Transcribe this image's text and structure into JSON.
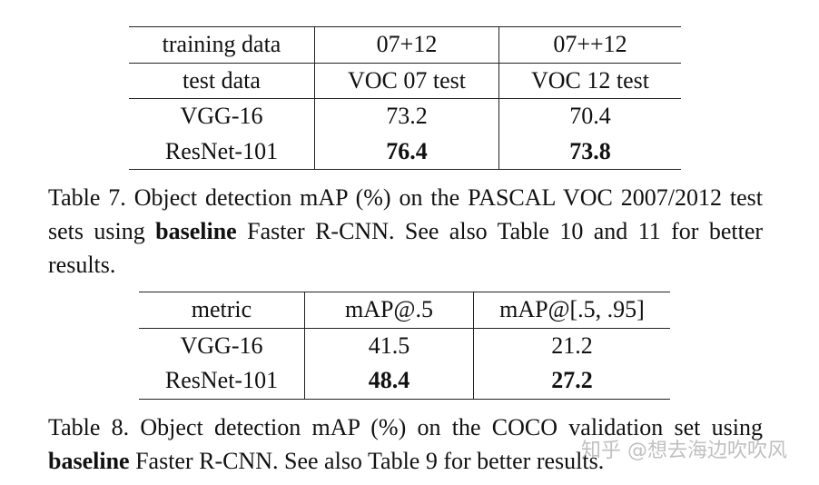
{
  "table7": {
    "rows": [
      [
        "training data",
        "07+12",
        "07++12"
      ],
      [
        "test data",
        "VOC 07 test",
        "VOC 12 test"
      ],
      [
        "VGG-16",
        "73.2",
        "70.4"
      ],
      [
        "ResNet-101",
        "76.4",
        "73.8"
      ]
    ],
    "caption": {
      "label": "Table 7.",
      "pre": "Object detection mAP (%) on the PASCAL VOC 2007/2012 test sets using",
      "bold": "baseline",
      "post": "Faster R-CNN. See also Table 10 and 11 for better results."
    }
  },
  "table8": {
    "rows": [
      [
        "metric",
        "mAP@.5",
        "mAP@[.5, .95]"
      ],
      [
        "VGG-16",
        "41.5",
        "21.2"
      ],
      [
        "ResNet-101",
        "48.4",
        "27.2"
      ]
    ],
    "caption": {
      "label": "Table 8.",
      "pre": "Object detection mAP (%) on the COCO validation set using",
      "bold": "baseline",
      "post": "Faster R-CNN. See also Table 9 for better results."
    }
  },
  "watermark": "知乎 @想去海边吹吹风"
}
